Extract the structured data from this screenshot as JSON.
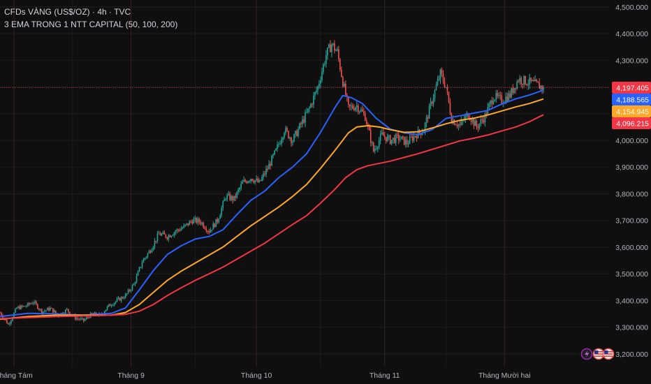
{
  "header": {
    "symbol_line": "CFDs VÀNG (US$/OZ) · 4h · TVC",
    "indicator_line": "3 EMA TRONG 1 NTT CAPITAL (50, 100, 200)"
  },
  "colors": {
    "background": "#0f0f0f",
    "grid": "#1d1d1f",
    "month_separator": "#3a1f24",
    "candle_up": "#26a69a",
    "candle_down": "#ef5350",
    "ema50": "#2962ff",
    "ema100": "#ffa726",
    "ema200": "#f23645",
    "last_price_line": "#f23645"
  },
  "badges": {
    "lightning_icon": "lightning-icon",
    "flag_icon_1": "us-flag-icon",
    "flag_icon_2": "us-flag-icon"
  },
  "chart_data": {
    "type": "candlestick",
    "xlim": [
      0,
      210
    ],
    "ylim": [
      3150,
      4510
    ],
    "y_ticks": [
      3200,
      3300,
      3400,
      3500,
      3600,
      3700,
      3800,
      3900,
      4000,
      4100,
      4200,
      4300,
      4400,
      4500
    ],
    "y_tick_labels": [
      "3,200.000",
      "3,300.000",
      "3,400.000",
      "3,500.000",
      "3,600.000",
      "3,700.000",
      "3,800.000",
      "3,900.000",
      "4,000.000",
      "4,100.000",
      "4,200.000",
      "4,300.000",
      "4,400.000",
      "4,500.000"
    ],
    "x_ticks": [
      {
        "label": "Tháng Tám",
        "x": 5
      },
      {
        "label": "Tháng 9",
        "x": 47
      },
      {
        "label": "Tháng 10",
        "x": 92
      },
      {
        "label": "Tháng 11",
        "x": 138
      },
      {
        "label": "Tháng Mười hai",
        "x": 181
      }
    ],
    "ohlc_anchors": [
      [
        0,
        3355
      ],
      [
        3,
        3310
      ],
      [
        6,
        3372
      ],
      [
        9,
        3378
      ],
      [
        12,
        3395
      ],
      [
        15,
        3358
      ],
      [
        18,
        3370
      ],
      [
        21,
        3345
      ],
      [
        24,
        3365
      ],
      [
        27,
        3335
      ],
      [
        30,
        3325
      ],
      [
        33,
        3350
      ],
      [
        36,
        3345
      ],
      [
        39,
        3380
      ],
      [
        42,
        3400
      ],
      [
        45,
        3418
      ],
      [
        48,
        3460
      ],
      [
        51,
        3545
      ],
      [
        54,
        3590
      ],
      [
        57,
        3650
      ],
      [
        60,
        3640
      ],
      [
        63,
        3660
      ],
      [
        66,
        3675
      ],
      [
        69,
        3700
      ],
      [
        72,
        3695
      ],
      [
        75,
        3660
      ],
      [
        78,
        3700
      ],
      [
        81,
        3790
      ],
      [
        84,
        3780
      ],
      [
        87,
        3840
      ],
      [
        90,
        3860
      ],
      [
        93,
        3840
      ],
      [
        96,
        3895
      ],
      [
        99,
        3960
      ],
      [
        102,
        4040
      ],
      [
        105,
        4000
      ],
      [
        108,
        4060
      ],
      [
        111,
        4120
      ],
      [
        114,
        4200
      ],
      [
        117,
        4320
      ],
      [
        119,
        4360
      ],
      [
        121,
        4330
      ],
      [
        123,
        4220
      ],
      [
        125,
        4120
      ],
      [
        128,
        4130
      ],
      [
        131,
        4090
      ],
      [
        134,
        3960
      ],
      [
        137,
        4020
      ],
      [
        140,
        4000
      ],
      [
        143,
        4010
      ],
      [
        146,
        3990
      ],
      [
        149,
        4020
      ],
      [
        152,
        4040
      ],
      [
        155,
        4150
      ],
      [
        158,
        4250
      ],
      [
        160,
        4200
      ],
      [
        162,
        4080
      ],
      [
        165,
        4055
      ],
      [
        168,
        4100
      ],
      [
        171,
        4050
      ],
      [
        174,
        4090
      ],
      [
        177,
        4165
      ],
      [
        180,
        4150
      ],
      [
        183,
        4170
      ],
      [
        186,
        4230
      ],
      [
        189,
        4220
      ],
      [
        192,
        4210
      ],
      [
        195,
        4197
      ]
    ],
    "series": [
      {
        "name": "EMA 50",
        "points": [
          [
            0,
            3340
          ],
          [
            10,
            3352
          ],
          [
            20,
            3350
          ],
          [
            30,
            3345
          ],
          [
            40,
            3352
          ],
          [
            45,
            3372
          ],
          [
            50,
            3440
          ],
          [
            55,
            3512
          ],
          [
            60,
            3572
          ],
          [
            65,
            3605
          ],
          [
            70,
            3630
          ],
          [
            75,
            3640
          ],
          [
            80,
            3665
          ],
          [
            85,
            3722
          ],
          [
            90,
            3775
          ],
          [
            95,
            3810
          ],
          [
            100,
            3860
          ],
          [
            105,
            3900
          ],
          [
            110,
            3950
          ],
          [
            115,
            4030
          ],
          [
            120,
            4120
          ],
          [
            123,
            4168
          ],
          [
            126,
            4160
          ],
          [
            130,
            4138
          ],
          [
            135,
            4082
          ],
          [
            140,
            4042
          ],
          [
            145,
            4028
          ],
          [
            150,
            4022
          ],
          [
            155,
            4040
          ],
          [
            160,
            4082
          ],
          [
            165,
            4092
          ],
          [
            170,
            4102
          ],
          [
            175,
            4112
          ],
          [
            180,
            4136
          ],
          [
            185,
            4155
          ],
          [
            190,
            4170
          ],
          [
            195,
            4188
          ]
        ]
      },
      {
        "name": "EMA 100",
        "points": [
          [
            0,
            3330
          ],
          [
            10,
            3340
          ],
          [
            20,
            3345
          ],
          [
            30,
            3345
          ],
          [
            40,
            3345
          ],
          [
            45,
            3355
          ],
          [
            50,
            3385
          ],
          [
            55,
            3430
          ],
          [
            60,
            3475
          ],
          [
            65,
            3510
          ],
          [
            70,
            3540
          ],
          [
            75,
            3570
          ],
          [
            80,
            3600
          ],
          [
            85,
            3640
          ],
          [
            90,
            3680
          ],
          [
            95,
            3715
          ],
          [
            100,
            3750
          ],
          [
            105,
            3790
          ],
          [
            110,
            3835
          ],
          [
            115,
            3895
          ],
          [
            120,
            3960
          ],
          [
            125,
            4028
          ],
          [
            128,
            4050
          ],
          [
            132,
            4055
          ],
          [
            136,
            4050
          ],
          [
            140,
            4040
          ],
          [
            145,
            4030
          ],
          [
            150,
            4032
          ],
          [
            155,
            4046
          ],
          [
            160,
            4062
          ],
          [
            165,
            4075
          ],
          [
            170,
            4083
          ],
          [
            175,
            4095
          ],
          [
            180,
            4110
          ],
          [
            185,
            4125
          ],
          [
            190,
            4138
          ],
          [
            195,
            4155
          ]
        ]
      },
      {
        "name": "EMA 200",
        "points": [
          [
            0,
            3332
          ],
          [
            20,
            3340
          ],
          [
            40,
            3345
          ],
          [
            45,
            3348
          ],
          [
            50,
            3360
          ],
          [
            55,
            3385
          ],
          [
            60,
            3418
          ],
          [
            65,
            3448
          ],
          [
            70,
            3475
          ],
          [
            75,
            3500
          ],
          [
            80,
            3525
          ],
          [
            85,
            3555
          ],
          [
            90,
            3585
          ],
          [
            95,
            3615
          ],
          [
            100,
            3650
          ],
          [
            105,
            3685
          ],
          [
            110,
            3718
          ],
          [
            115,
            3765
          ],
          [
            120,
            3815
          ],
          [
            124,
            3860
          ],
          [
            128,
            3890
          ],
          [
            132,
            3905
          ],
          [
            140,
            3922
          ],
          [
            150,
            3950
          ],
          [
            160,
            3982
          ],
          [
            165,
            3998
          ],
          [
            170,
            4008
          ],
          [
            175,
            4020
          ],
          [
            180,
            4035
          ],
          [
            185,
            4050
          ],
          [
            190,
            4070
          ],
          [
            195,
            4096
          ]
        ]
      }
    ],
    "price_labels": [
      {
        "label": "4,197.405",
        "value": 4197.405,
        "color": "#f23645"
      },
      {
        "label": "4,188.565",
        "value": 4188.565,
        "color": "#2962ff"
      },
      {
        "label": "4,154.945",
        "value": 4154.945,
        "color": "#ffa726"
      },
      {
        "label": "4,096.215",
        "value": 4096.215,
        "color": "#f23645"
      }
    ],
    "last_price": 4197.405
  }
}
